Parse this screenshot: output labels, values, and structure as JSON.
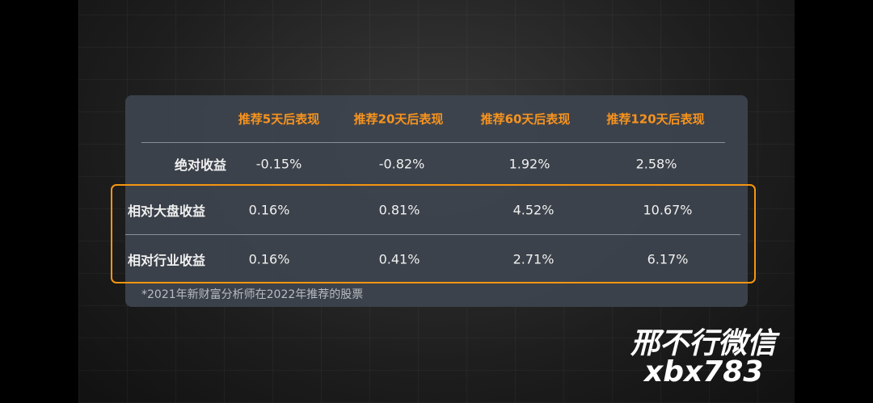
{
  "table": {
    "headers": [
      "推荐5天后表现",
      "推荐20天后表现",
      "推荐60天后表现",
      "推荐120天后表现"
    ],
    "rows": [
      [
        "绝对收益",
        "-0.15%",
        "-0.82%",
        "1.92%",
        "2.58%"
      ],
      [
        "相对大盘收益",
        "0.16%",
        "0.81%",
        "4.52%",
        "10.67%"
      ],
      [
        "相对行业收益",
        "0.16%",
        "0.41%",
        "2.71%",
        "6.17%"
      ]
    ]
  },
  "footnote": "*2021年新财富分析师在2022年推荐的股票",
  "watermark": [
    "邢不行微信",
    "xbx783"
  ]
}
